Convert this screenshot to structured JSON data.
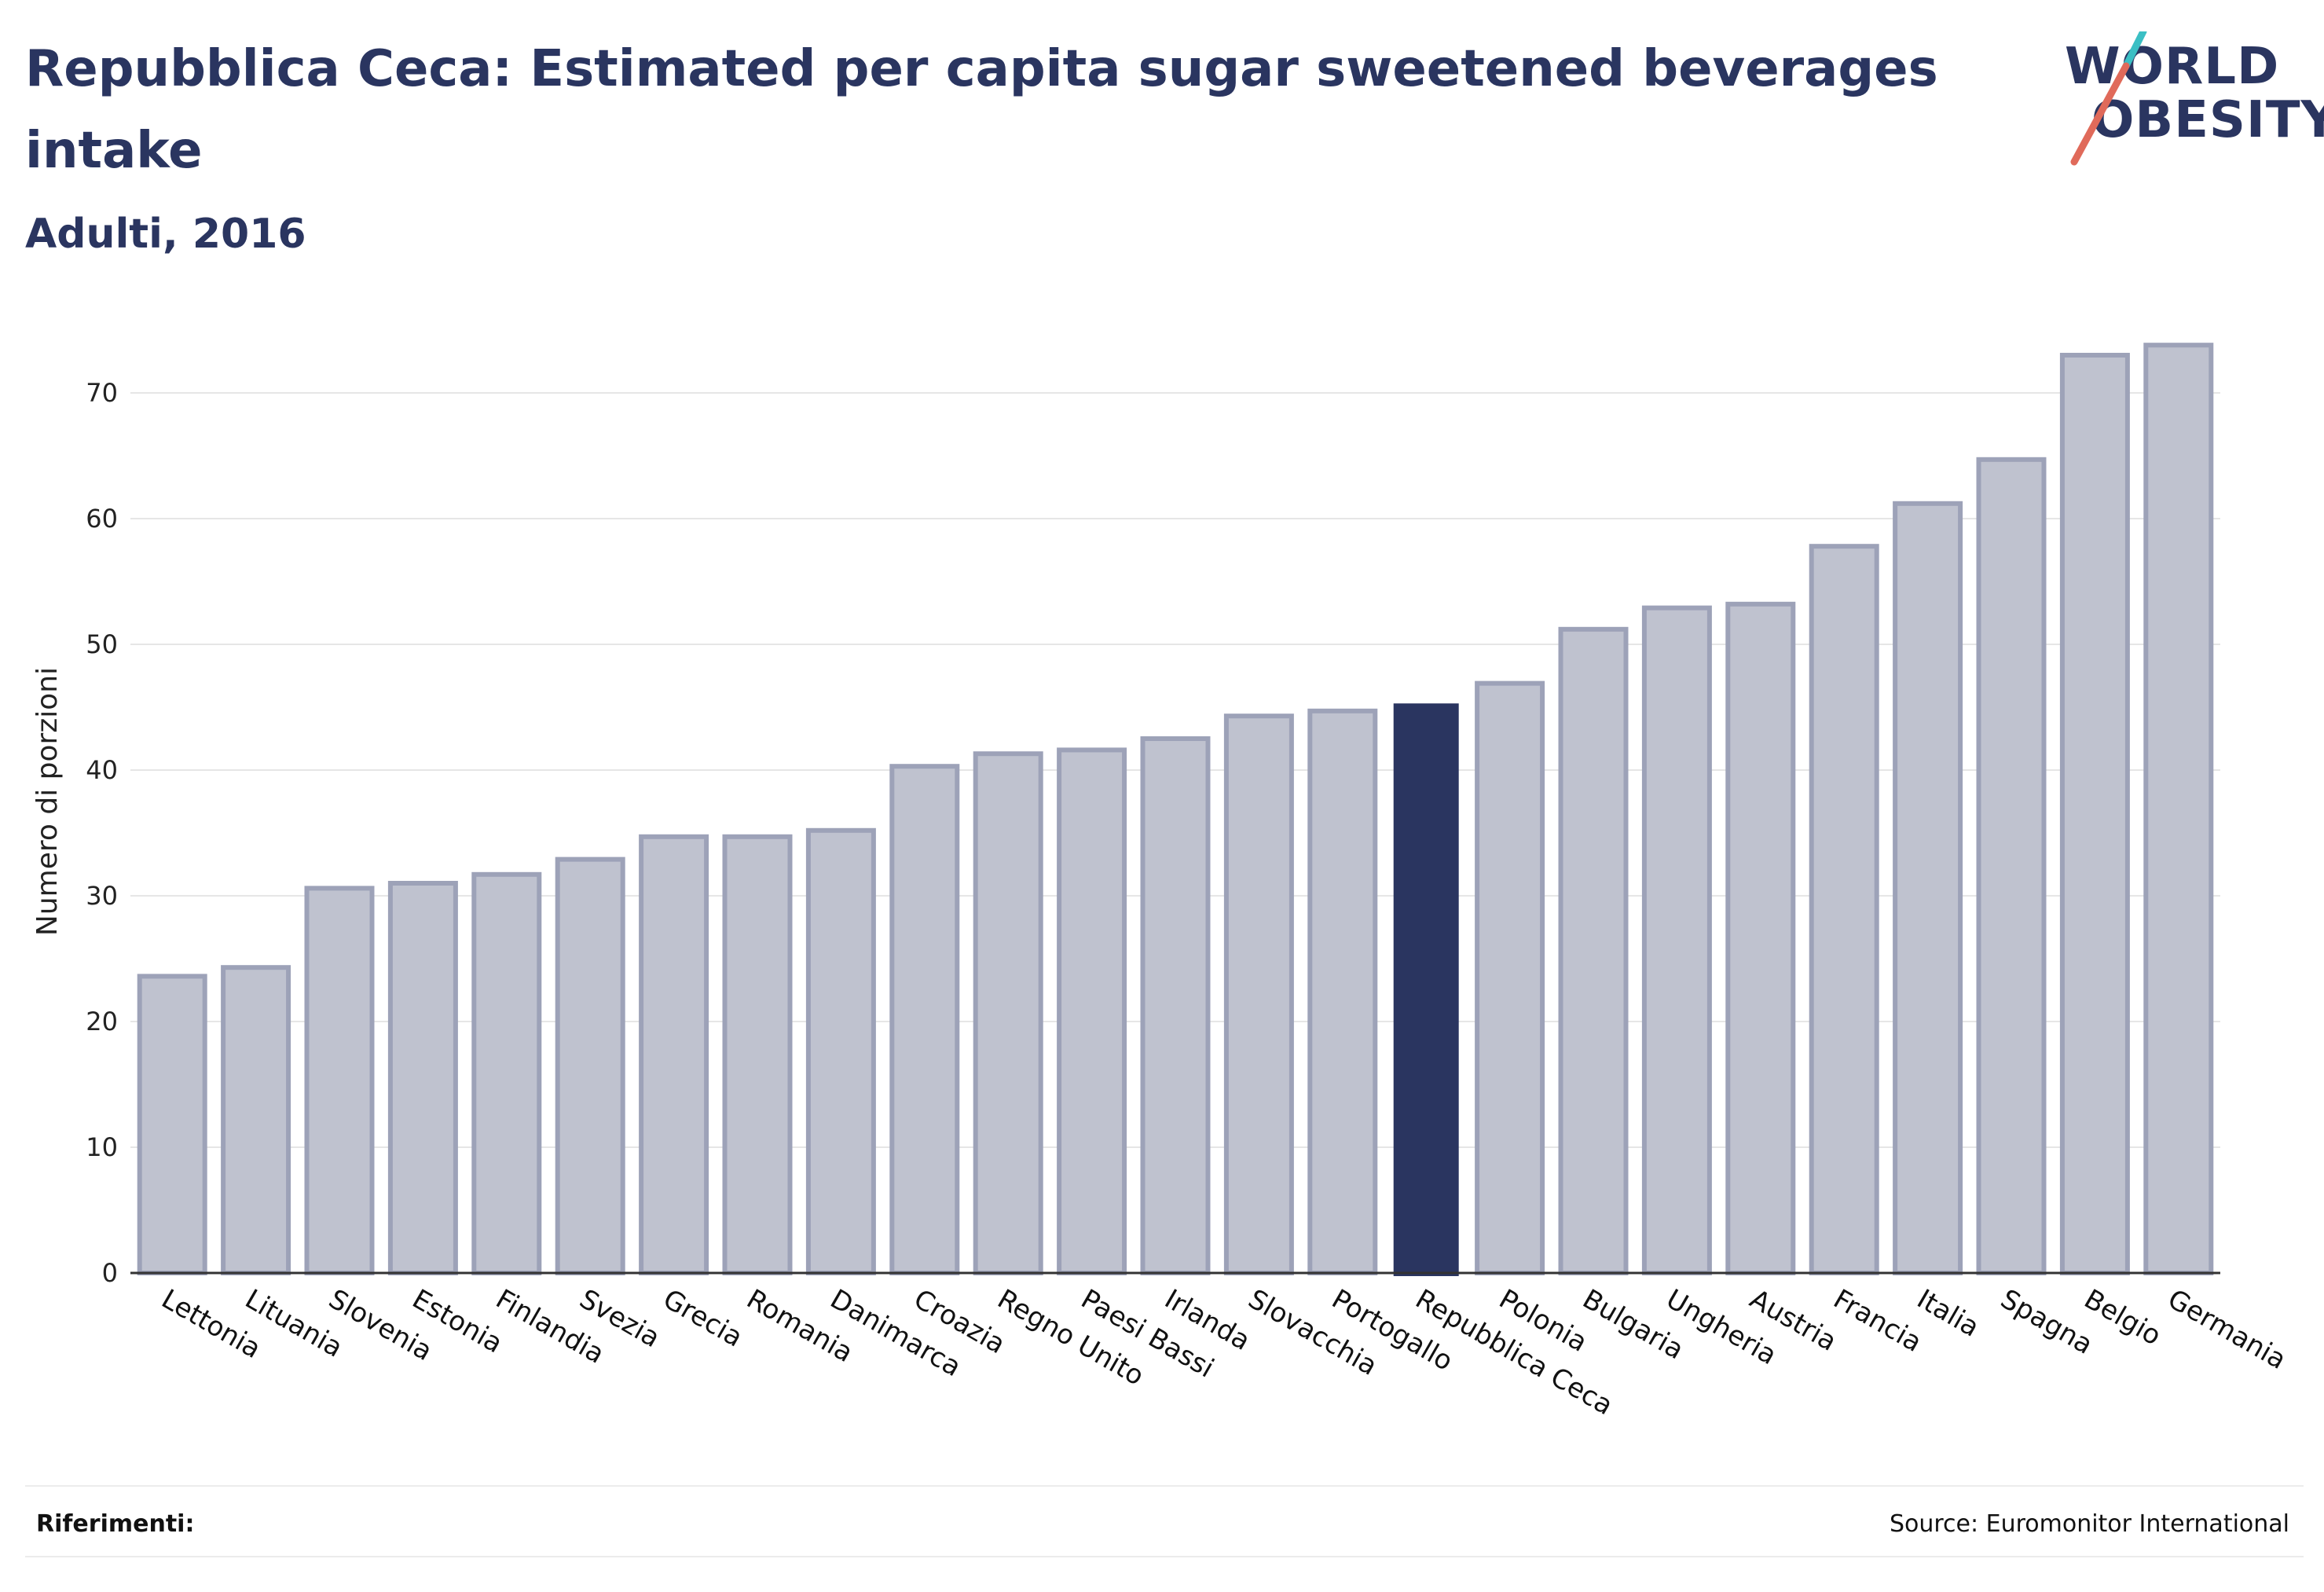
{
  "header": {
    "title": "Repubblica Ceca: Estimated per capita sugar sweetened beverages intake",
    "subtitle": "Adulti, 2016"
  },
  "logo": {
    "line1": "WORLD",
    "line2": "OBESITY",
    "accent_colors": [
      "#3bbfc4",
      "#e06a5a"
    ]
  },
  "colors": {
    "highlight": "#2a3560",
    "bar_fill": "#bfc2cf",
    "bar_stroke": "#9da2b8",
    "grid": "#e6e6e6",
    "axis": "#333333"
  },
  "chart_data": {
    "type": "bar",
    "ylabel": "Numero di porzioni",
    "ylim": [
      0,
      75
    ],
    "yticks": [
      0,
      10,
      20,
      30,
      40,
      50,
      60,
      70
    ],
    "grid": true,
    "highlight_category": "Repubblica Ceca",
    "categories": [
      "Lettonia",
      "Lituania",
      "Slovenia",
      "Estonia",
      "Finlandia",
      "Svezia",
      "Grecia",
      "Romania",
      "Danimarca",
      "Croazia",
      "Regno Unito",
      "Paesi Bassi",
      "Irlanda",
      "Slovacchia",
      "Portogallo",
      "Repubblica Ceca",
      "Polonia",
      "Bulgaria",
      "Ungheria",
      "Austria",
      "Francia",
      "Italia",
      "Spagna",
      "Belgio",
      "Germania"
    ],
    "values": [
      23.6,
      24.3,
      30.6,
      31.0,
      31.7,
      32.9,
      34.7,
      34.7,
      35.2,
      40.3,
      41.3,
      41.6,
      42.5,
      44.3,
      44.7,
      45.3,
      46.9,
      51.2,
      52.9,
      53.2,
      57.8,
      61.2,
      64.7,
      73.0,
      73.8
    ]
  },
  "footer": {
    "references_label": "Riferimenti:",
    "source": "Source: Euromonitor International"
  }
}
